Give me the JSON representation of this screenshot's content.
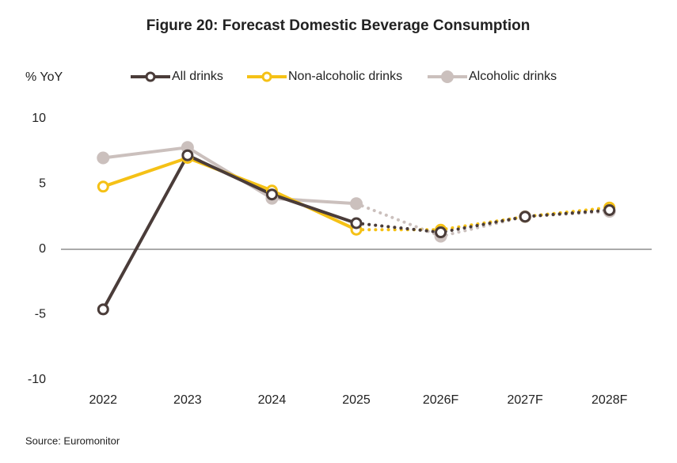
{
  "chart_data": {
    "type": "line",
    "title": "Figure 20: Forecast Domestic Beverage Consumption",
    "y_label": "% YoY",
    "source": "Source: Euromonitor",
    "categories": [
      "2022",
      "2023",
      "2024",
      "2025",
      "2026F",
      "2027F",
      "2028F"
    ],
    "series": [
      {
        "name": "All drinks",
        "color": "#4a3c39",
        "marker": "hollow",
        "values": [
          -4.6,
          7.2,
          4.2,
          2.0,
          1.3,
          2.5,
          3.0
        ]
      },
      {
        "name": "Non-alcoholic drinks",
        "color": "#f5c116",
        "marker": "hollow",
        "values": [
          4.8,
          7.0,
          4.5,
          1.5,
          1.5,
          2.5,
          3.2
        ]
      },
      {
        "name": "Alcoholic drinks",
        "color": "#cbc0bd",
        "marker": "filled",
        "values": [
          7.0,
          7.8,
          3.9,
          3.5,
          1.0,
          2.5,
          2.9
        ]
      }
    ],
    "ylim": [
      -10,
      10
    ],
    "yticks": [
      -10,
      -5,
      0,
      5,
      10
    ],
    "grid": false,
    "zero_line": true,
    "legend": "top"
  }
}
